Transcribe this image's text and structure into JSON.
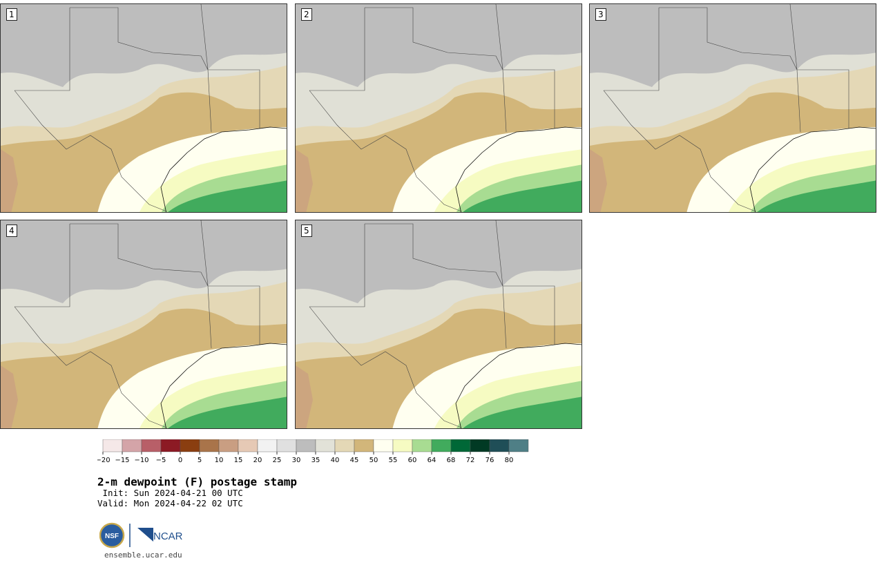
{
  "panels": [
    {
      "label": "1"
    },
    {
      "label": "2"
    },
    {
      "label": "3"
    },
    {
      "label": "4"
    },
    {
      "label": "5"
    }
  ],
  "colorbar": {
    "colors": [
      "#f5e8e8",
      "#d4a4a8",
      "#b85f68",
      "#8c1a24",
      "#8a3e10",
      "#a9744a",
      "#c99e82",
      "#e6c9b5",
      "#f2f2f2",
      "#e0e0e0",
      "#bdbdbd",
      "#e2e2d8",
      "#e4d8b6",
      "#d2b67a",
      "#fffff0",
      "#f6fbc2",
      "#a8dc92",
      "#41ab5d",
      "#006837",
      "#013a24",
      "#1f4e57",
      "#4f7f86"
    ],
    "ticks": [
      "−20",
      "−15",
      "−10",
      "−5",
      "0",
      "5",
      "10",
      "15",
      "20",
      "25",
      "30",
      "35",
      "40",
      "45",
      "50",
      "55",
      "60",
      "64",
      "68",
      "72",
      "76",
      "80"
    ]
  },
  "title": "2-m dewpoint (F) postage stamp",
  "init": " Init: Sun 2024-04-21 00 UTC",
  "valid": "Valid: Mon 2024-04-22 02 UTC",
  "logos": {
    "nsf": "NSF",
    "ncar": "NCAR"
  },
  "site": "ensemble.ucar.edu"
}
